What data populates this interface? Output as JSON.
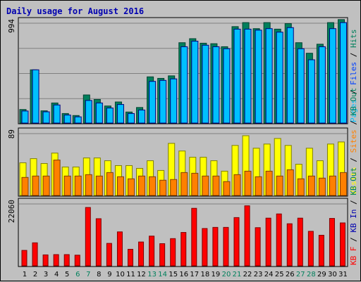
{
  "chart_data": {
    "type": "bar",
    "title": "Daily usage for August 2016",
    "categories": [
      "1",
      "2",
      "3",
      "4",
      "5",
      "6",
      "7",
      "8",
      "9",
      "10",
      "11",
      "12",
      "13",
      "14",
      "15",
      "16",
      "17",
      "18",
      "19",
      "20",
      "21",
      "22",
      "23",
      "24",
      "25",
      "26",
      "27",
      "28",
      "29",
      "30",
      "31"
    ],
    "weekend_days": [
      "6",
      "7",
      "13",
      "14",
      "20",
      "21",
      "27",
      "28"
    ],
    "colors": {
      "hits": "#00805c",
      "files": "#00c0ff",
      "pages": "#0040ff",
      "visits": "#ffff00",
      "sites": "#ff8000",
      "kbin": "#0000b0",
      "kbout": "#00805c",
      "kbf": "#ff0000",
      "weekend_tick": "#00805c",
      "weekday_tick": "#000000"
    },
    "panels": [
      {
        "id": "top",
        "ymax_label": "994",
        "ylim": [
          0,
          994
        ],
        "legend": [
          {
            "text": "Pages",
            "color": "#00c0ff"
          },
          {
            "text": " / ",
            "color": "#000000"
          },
          {
            "text": "Files",
            "color": "#0040ff"
          },
          {
            "text": " / ",
            "color": "#000000"
          },
          {
            "text": "Hits",
            "color": "#00805c"
          }
        ],
        "series": [
          {
            "name": "Hits",
            "values": [
              135,
              530,
              122,
              200,
              95,
              75,
              280,
              235,
              170,
              210,
              110,
              155,
              460,
              445,
              470,
              800,
              840,
              795,
              790,
              760,
              960,
              1000,
              940,
              1000,
              935,
              990,
              800,
              695,
              785,
              1000,
              1030
            ]
          },
          {
            "name": "Files",
            "values": [
              120,
              530,
              112,
              180,
              80,
              62,
              225,
              200,
              150,
              185,
              95,
              130,
              415,
              425,
              440,
              760,
              815,
              775,
              760,
              740,
              935,
              935,
              925,
              940,
              905,
              950,
              740,
              630,
              760,
              940,
              1000
            ]
          }
        ]
      },
      {
        "id": "middle",
        "ymax_label": "89",
        "ylim": [
          0,
          89
        ],
        "legend": [
          {
            "text": "Visits",
            "color": "#ffff00"
          },
          {
            "text": " / ",
            "color": "#000000"
          },
          {
            "text": "Sites",
            "color": "#ff8000"
          },
          {
            "text": " / ",
            "color": "#000000"
          },
          {
            "text": "KB Out",
            "color": "#00805c"
          }
        ],
        "series": [
          {
            "name": "Visits",
            "values": [
              47,
              53,
              46,
              61,
              41,
              41,
              54,
              54,
              50,
              43,
              43,
              39,
              50,
              36,
              75,
              64,
              55,
              55,
              50,
              35,
              72,
              86,
              68,
              74,
              82,
              72,
              45,
              68,
              50,
              74,
              77
            ]
          },
          {
            "name": "Sites",
            "values": [
              26,
              28,
              28,
              51,
              28,
              28,
              30,
              28,
              33,
              27,
              24,
              28,
              27,
              22,
              23,
              33,
              32,
              28,
              28,
              20,
              30,
              35,
              27,
              35,
              28,
              37,
              24,
              28,
              25,
              28,
              33
            ]
          }
        ]
      },
      {
        "id": "bottom",
        "ymax_label": "22060",
        "ylim": [
          0,
          22060
        ],
        "legend": [
          {
            "text": "KB F",
            "color": "#ff0000"
          },
          {
            "text": " / ",
            "color": "#000000"
          },
          {
            "text": "KB In",
            "color": "#0000b0"
          },
          {
            "text": " / ",
            "color": "#000000"
          },
          {
            "text": "KB Out",
            "color": "#00805c"
          }
        ],
        "series": [
          {
            "name": "KB F",
            "values": [
              5500,
              8200,
              3900,
              4000,
              4000,
              3800,
              20800,
              16800,
              8000,
              12100,
              5900,
              8500,
              10600,
              7900,
              9700,
              11900,
              20500,
              13300,
              13700,
              13700,
              17200,
              21400,
              13600,
              17000,
              18500,
              15000,
              17000,
              12300,
              10900,
              16900,
              15300
            ]
          }
        ]
      }
    ]
  }
}
